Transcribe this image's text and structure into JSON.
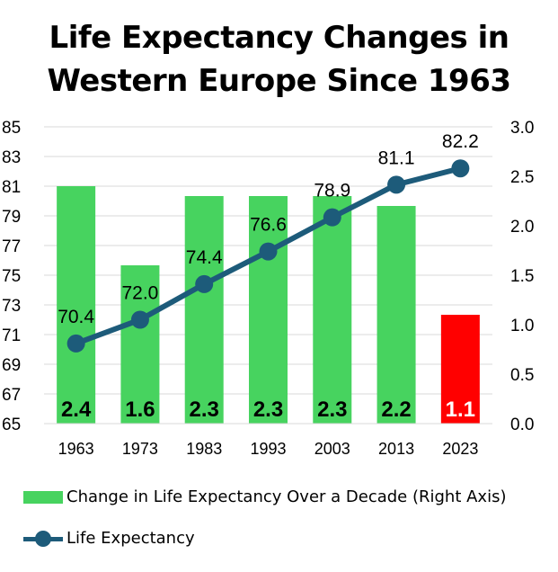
{
  "title_lines": [
    "Life Expectancy Changes in",
    "Western Europe Since 1963"
  ],
  "chart_data": {
    "type": "bar+line",
    "categories": [
      "1963",
      "1973",
      "1983",
      "1993",
      "2003",
      "2013",
      "2023"
    ],
    "bars": {
      "name": "Change in Life Expectancy Over a Decade (Right Axis)",
      "axis": "right",
      "values": [
        2.4,
        1.6,
        2.3,
        2.3,
        2.3,
        2.2,
        1.1
      ],
      "labels": [
        "2.4",
        "1.6",
        "2.3",
        "2.3",
        "2.3",
        "2.2",
        "1.1"
      ],
      "colors": [
        "#47d35f",
        "#47d35f",
        "#47d35f",
        "#47d35f",
        "#47d35f",
        "#47d35f",
        "#ff0000"
      ],
      "label_colors": [
        "#000000",
        "#000000",
        "#000000",
        "#000000",
        "#000000",
        "#000000",
        "#ffffff"
      ]
    },
    "line": {
      "name": "Life Expectancy",
      "axis": "left",
      "color": "#1d5b7a",
      "values": [
        70.4,
        72.0,
        74.4,
        76.6,
        78.9,
        81.1,
        82.2
      ],
      "labels": [
        "70.4",
        "72.0",
        "74.4",
        "76.6",
        "78.9",
        "81.1",
        "82.2"
      ]
    },
    "left_axis": {
      "ylim": [
        65,
        85
      ],
      "ticks": [
        "65",
        "67",
        "69",
        "71",
        "73",
        "75",
        "77",
        "79",
        "81",
        "83",
        "85"
      ]
    },
    "right_axis": {
      "ylim": [
        0,
        3
      ],
      "ticks": [
        "0.0",
        "0.5",
        "1.0",
        "1.5",
        "2.0",
        "2.5",
        "3.0"
      ]
    },
    "grid": true,
    "legend_position": "bottom"
  },
  "legend": {
    "bar_label": "Change in Life Expectancy Over a Decade (Right Axis)",
    "bar_color": "#47d35f",
    "line_label": "Life Expectancy"
  }
}
